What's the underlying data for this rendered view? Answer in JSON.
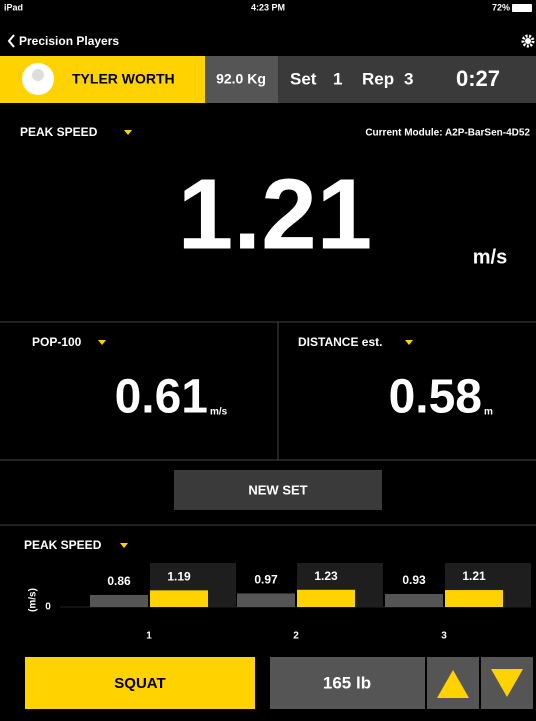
{
  "status": {
    "carrier": "iPad",
    "time": "4:23 PM",
    "battery": "72%"
  },
  "nav": {
    "back": "Precision Players"
  },
  "header": {
    "athlete": "TYLER WORTH",
    "weight": "92.0 Kg",
    "set_label": "Set",
    "set": "1",
    "rep_label": "Rep",
    "rep": "3",
    "timer": "0:27"
  },
  "main": {
    "metric": "PEAK SPEED",
    "module": "Current Module: A2P-BarSen-4D52",
    "value": "1.21",
    "unit": "m/s"
  },
  "left": {
    "metric": "POP-100",
    "value": "0.61",
    "unit": "m/s"
  },
  "right": {
    "metric": "DISTANCE est.",
    "value": "0.58",
    "unit": "m"
  },
  "button": "NEW SET",
  "chart": {
    "type": "bar",
    "title": "PEAK SPEED",
    "ylabel": "(m/s)",
    "yticks": [
      0
    ],
    "categories": [
      "1",
      "2",
      "3"
    ],
    "series": [
      {
        "color": "#555555",
        "values": [
          0.86,
          0.97,
          0.93
        ]
      },
      {
        "color": "#ffd200",
        "values": [
          1.19,
          1.23,
          1.21
        ]
      }
    ]
  },
  "footer": {
    "exercise": "SQUAT",
    "load": "165 lb"
  }
}
